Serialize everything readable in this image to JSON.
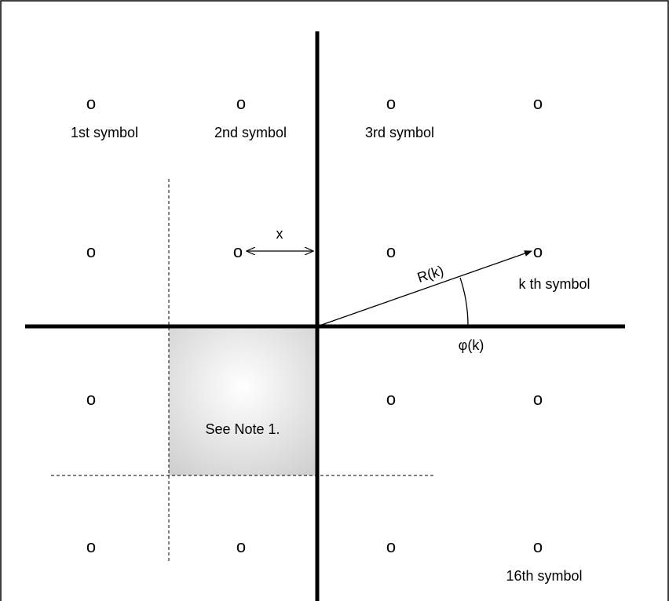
{
  "diagram": {
    "point_glyph": "o",
    "labels": {
      "first": "1st symbol",
      "second": "2nd symbol",
      "third": "3rd symbol",
      "kth": "k th symbol",
      "sixteenth": "16th symbol"
    },
    "distance_label": "x",
    "radius_label": "R(k)",
    "angle_label": "φ(k)",
    "note_text": "See Note 1.",
    "colors": {
      "ink": "#000000",
      "shade_center": "#ffffff",
      "shade_edge": "#cfcfcf"
    }
  }
}
